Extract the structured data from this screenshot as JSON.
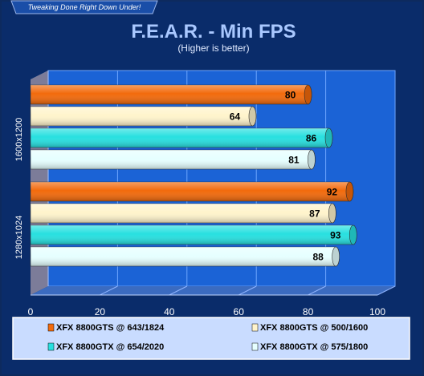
{
  "banner": "Tweaking Done Right Down Under!",
  "chart_data": {
    "type": "bar",
    "orientation": "horizontal",
    "title": "F.E.A.R. - Min FPS",
    "subtitle": "(Higher is better)",
    "categories": [
      "1600x1200",
      "1280x1024"
    ],
    "xlim": [
      0,
      100
    ],
    "xticks": [
      0,
      20,
      40,
      60,
      80,
      100
    ],
    "grid": true,
    "legend_position": "bottom",
    "series": [
      {
        "name": "XFX 8800GTS @ 643/1824",
        "color": "#f26a0c",
        "values": [
          80,
          92
        ]
      },
      {
        "name": "XFX 8800GTS @ 500/1600",
        "color": "#fff4cc",
        "values": [
          64,
          87
        ]
      },
      {
        "name": "XFX 8800GTX @ 654/2020",
        "color": "#27e0e0",
        "values": [
          86,
          93
        ]
      },
      {
        "name": "XFX 8800GTX @ 575/1800",
        "color": "#e6ffff",
        "values": [
          81,
          88
        ]
      }
    ]
  }
}
